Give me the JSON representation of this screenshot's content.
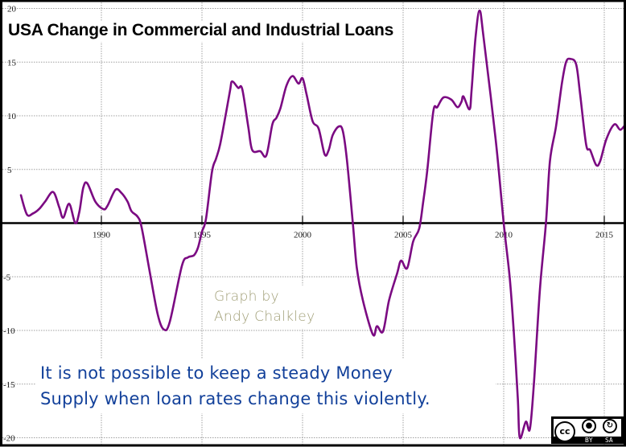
{
  "chart_data": {
    "type": "line",
    "title": "USA Change in Commercial and Industrial Loans",
    "xlabel": "",
    "ylabel": "",
    "xlim": [
      1985,
      2016
    ],
    "ylim": [
      -20,
      20
    ],
    "grid": true,
    "legend": null,
    "x_ticks": [
      1990,
      1995,
      2000,
      2005,
      2010,
      2015
    ],
    "y_ticks": [
      20,
      15,
      10,
      5,
      -5,
      -10,
      -15,
      -20
    ],
    "series": [
      {
        "name": "Change in Commercial and Industrial Loans (%)",
        "color": "#7b0a82",
        "points": [
          [
            1986.0,
            2.6
          ],
          [
            1986.3,
            0.8
          ],
          [
            1986.6,
            0.9
          ],
          [
            1986.9,
            1.3
          ],
          [
            1987.2,
            2.0
          ],
          [
            1987.6,
            2.9
          ],
          [
            1987.9,
            1.5
          ],
          [
            1988.1,
            0.5
          ],
          [
            1988.4,
            1.8
          ],
          [
            1988.7,
            0.0
          ],
          [
            1988.9,
            1.0
          ],
          [
            1989.1,
            3.3
          ],
          [
            1989.3,
            3.7
          ],
          [
            1989.7,
            2.0
          ],
          [
            1990.1,
            1.3
          ],
          [
            1990.3,
            1.6
          ],
          [
            1990.7,
            3.1
          ],
          [
            1991.0,
            2.8
          ],
          [
            1991.3,
            2.0
          ],
          [
            1991.5,
            1.1
          ],
          [
            1991.8,
            0.6
          ],
          [
            1992.0,
            -0.4
          ],
          [
            1992.4,
            -4.5
          ],
          [
            1992.8,
            -8.5
          ],
          [
            1993.1,
            -9.9
          ],
          [
            1993.4,
            -9.2
          ],
          [
            1994.0,
            -4.0
          ],
          [
            1994.3,
            -3.2
          ],
          [
            1994.6,
            -3.0
          ],
          [
            1994.8,
            -2.3
          ],
          [
            1995.0,
            -0.8
          ],
          [
            1995.2,
            0.4
          ],
          [
            1995.5,
            4.8
          ],
          [
            1995.7,
            6.0
          ],
          [
            1995.9,
            7.3
          ],
          [
            1996.2,
            10.3
          ],
          [
            1996.4,
            12.4
          ],
          [
            1996.5,
            13.2
          ],
          [
            1996.8,
            12.6
          ],
          [
            1997.0,
            12.5
          ],
          [
            1997.3,
            9.0
          ],
          [
            1997.5,
            6.8
          ],
          [
            1997.9,
            6.7
          ],
          [
            1998.2,
            6.3
          ],
          [
            1998.5,
            9.2
          ],
          [
            1998.7,
            9.8
          ],
          [
            1998.9,
            10.7
          ],
          [
            1999.2,
            12.8
          ],
          [
            1999.5,
            13.7
          ],
          [
            1999.8,
            13.0
          ],
          [
            2000.0,
            13.5
          ],
          [
            2000.2,
            12.0
          ],
          [
            2000.5,
            9.5
          ],
          [
            2000.8,
            8.8
          ],
          [
            2001.1,
            6.4
          ],
          [
            2001.3,
            6.8
          ],
          [
            2001.5,
            8.2
          ],
          [
            2001.8,
            9.0
          ],
          [
            2002.0,
            8.6
          ],
          [
            2002.2,
            6.0
          ],
          [
            2002.5,
            0.0
          ],
          [
            2002.7,
            -4.2
          ],
          [
            2003.0,
            -7.2
          ],
          [
            2003.5,
            -10.4
          ],
          [
            2003.7,
            -9.6
          ],
          [
            2004.0,
            -10.1
          ],
          [
            2004.3,
            -7.2
          ],
          [
            2004.7,
            -4.7
          ],
          [
            2004.9,
            -3.5
          ],
          [
            2005.2,
            -4.2
          ],
          [
            2005.5,
            -1.7
          ],
          [
            2005.8,
            -0.5
          ],
          [
            2006.0,
            2.0
          ],
          [
            2006.2,
            4.9
          ],
          [
            2006.5,
            10.4
          ],
          [
            2006.7,
            10.8
          ],
          [
            2007.0,
            11.7
          ],
          [
            2007.4,
            11.5
          ],
          [
            2007.7,
            10.8
          ],
          [
            2007.9,
            11.3
          ],
          [
            2008.0,
            11.8
          ],
          [
            2008.3,
            10.6
          ],
          [
            2008.4,
            12.3
          ],
          [
            2008.6,
            17.3
          ],
          [
            2008.8,
            19.8
          ],
          [
            2009.0,
            17.3
          ],
          [
            2009.6,
            7.8
          ],
          [
            2010.0,
            0.0
          ],
          [
            2010.3,
            -5.1
          ],
          [
            2010.5,
            -10.1
          ],
          [
            2010.7,
            -16.3
          ],
          [
            2010.8,
            -20.0
          ],
          [
            2011.1,
            -18.5
          ],
          [
            2011.3,
            -19.2
          ],
          [
            2011.5,
            -15.0
          ],
          [
            2011.8,
            -6.2
          ],
          [
            2012.1,
            0.0
          ],
          [
            2012.3,
            5.8
          ],
          [
            2012.6,
            9.0
          ],
          [
            2012.9,
            13.1
          ],
          [
            2013.1,
            15.0
          ],
          [
            2013.3,
            15.3
          ],
          [
            2013.6,
            14.8
          ],
          [
            2013.8,
            12.0
          ],
          [
            2014.1,
            7.3
          ],
          [
            2014.3,
            6.8
          ],
          [
            2014.6,
            5.4
          ],
          [
            2014.8,
            5.8
          ],
          [
            2015.1,
            7.8
          ],
          [
            2015.5,
            9.2
          ],
          [
            2015.8,
            8.7
          ],
          [
            2016.1,
            9.2
          ],
          [
            2016.3,
            8.6
          ],
          [
            2016.6,
            8.3
          ],
          [
            2016.8,
            8.0
          ]
        ]
      }
    ],
    "annotations": [
      "Graph by Andy Chalkley",
      "It is not possible to keep a steady Money Supply when loan rates change this violently."
    ]
  },
  "header": {
    "title": "USA Change in Commercial and Industrial Loans"
  },
  "credit": {
    "line1": "Graph by",
    "line2": "Andy Chalkley"
  },
  "note": {
    "line1": "It is not possible to keep a steady Money",
    "line2": "Supply when loan rates change this violently."
  },
  "license": {
    "main_label": "cc",
    "by_label": "BY",
    "sa_label": "SA",
    "by_icon": "person-icon",
    "sa_icon": "share-alike-icon"
  },
  "colors": {
    "line": "#7b0a82",
    "axis": "#000000",
    "grid": "#a0a0a0",
    "tick_label": "#1a1a1a",
    "credit_text": "#a09e76",
    "note_text": "#12409a"
  }
}
